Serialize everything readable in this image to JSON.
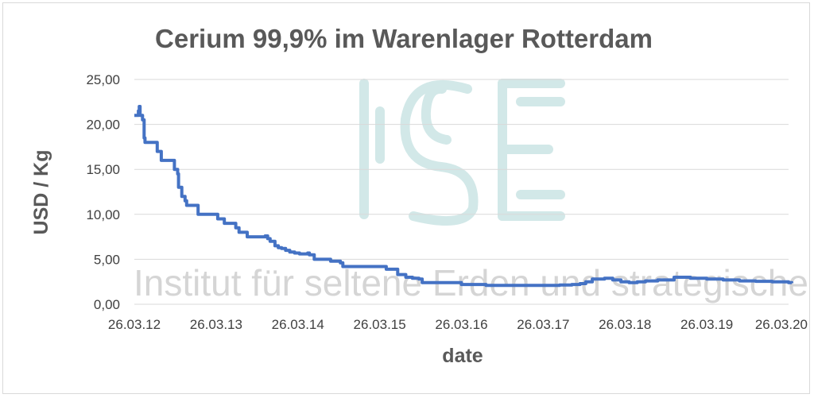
{
  "chart_data": {
    "type": "line",
    "title": "Cerium 99,9% im Warenlager Rotterdam",
    "xlabel": "date",
    "ylabel": "USD / Kg",
    "ylim": [
      0,
      25
    ],
    "yticks": [
      "0,00",
      "5,00",
      "10,00",
      "15,00",
      "20,00",
      "25,00"
    ],
    "xticks": [
      "26.03.12",
      "26.03.13",
      "26.03.14",
      "26.03.15",
      "26.03.16",
      "26.03.17",
      "26.03.18",
      "26.03.19",
      "26.03.20"
    ],
    "grid": "horizontal",
    "legend": "none",
    "line_color": "#4472c4",
    "series": [
      {
        "x_years": [
          0,
          0.04,
          0.05,
          0.06,
          0.07,
          0.1,
          0.12,
          0.13,
          0.14,
          0.2,
          0.28,
          0.29,
          0.33,
          0.34,
          0.48,
          0.49,
          0.51,
          0.53,
          0.54,
          0.55,
          0.58,
          0.62,
          0.64,
          0.65,
          0.68,
          0.77,
          0.78,
          0.98,
          1.02,
          1.06,
          1.1,
          1.14,
          1.18,
          1.24,
          1.28,
          1.32,
          1.38,
          1.58,
          1.6,
          1.63,
          1.66,
          1.72,
          1.76,
          1.8,
          1.85,
          1.9,
          1.96,
          2.02,
          2.08,
          2.12,
          2.14,
          2.2,
          2.26,
          2.4,
          2.52,
          2.55,
          2.68,
          3.0,
          3.08,
          3.16,
          3.22,
          3.32,
          3.4,
          3.48,
          3.52,
          3.8,
          4.0,
          4.3,
          4.6,
          4.95,
          5.2,
          5.35,
          5.45,
          5.52,
          5.6,
          5.75,
          5.85,
          5.95,
          6.05,
          6.15,
          6.25,
          6.4,
          6.6,
          6.8,
          7.0,
          7.2,
          7.4,
          7.6,
          7.8,
          8.0,
          8.04
        ],
        "values": [
          21.0,
          21.0,
          21.5,
          22.0,
          21.0,
          20.5,
          18.5,
          18.0,
          18.0,
          18.0,
          17.0,
          17.0,
          16.0,
          16.0,
          16.0,
          15.0,
          15.0,
          14.5,
          13.0,
          13.0,
          12.0,
          11.5,
          11.0,
          11.0,
          11.0,
          11.0,
          10.0,
          10.0,
          9.5,
          9.5,
          9.0,
          9.0,
          9.0,
          8.5,
          8.0,
          8.0,
          7.5,
          7.5,
          7.6,
          7.3,
          7.0,
          6.5,
          6.3,
          6.2,
          6.0,
          5.8,
          5.7,
          5.6,
          5.6,
          5.7,
          5.5,
          5.0,
          5.0,
          4.8,
          4.6,
          4.2,
          4.2,
          4.2,
          3.9,
          3.9,
          3.3,
          3.0,
          2.9,
          2.8,
          2.4,
          2.4,
          2.2,
          2.1,
          2.1,
          2.1,
          2.15,
          2.2,
          2.3,
          2.5,
          2.8,
          2.9,
          2.7,
          2.5,
          2.4,
          2.5,
          2.6,
          2.7,
          3.0,
          2.9,
          2.8,
          2.7,
          2.6,
          2.55,
          2.5,
          2.4,
          2.35
        ]
      }
    ],
    "watermark": {
      "logo_text": "ISE",
      "text": "Institut für seltene Erden und strategische Metalle",
      "logo_color": "#d2e8e8",
      "text_color": "#c8c8c8"
    }
  }
}
